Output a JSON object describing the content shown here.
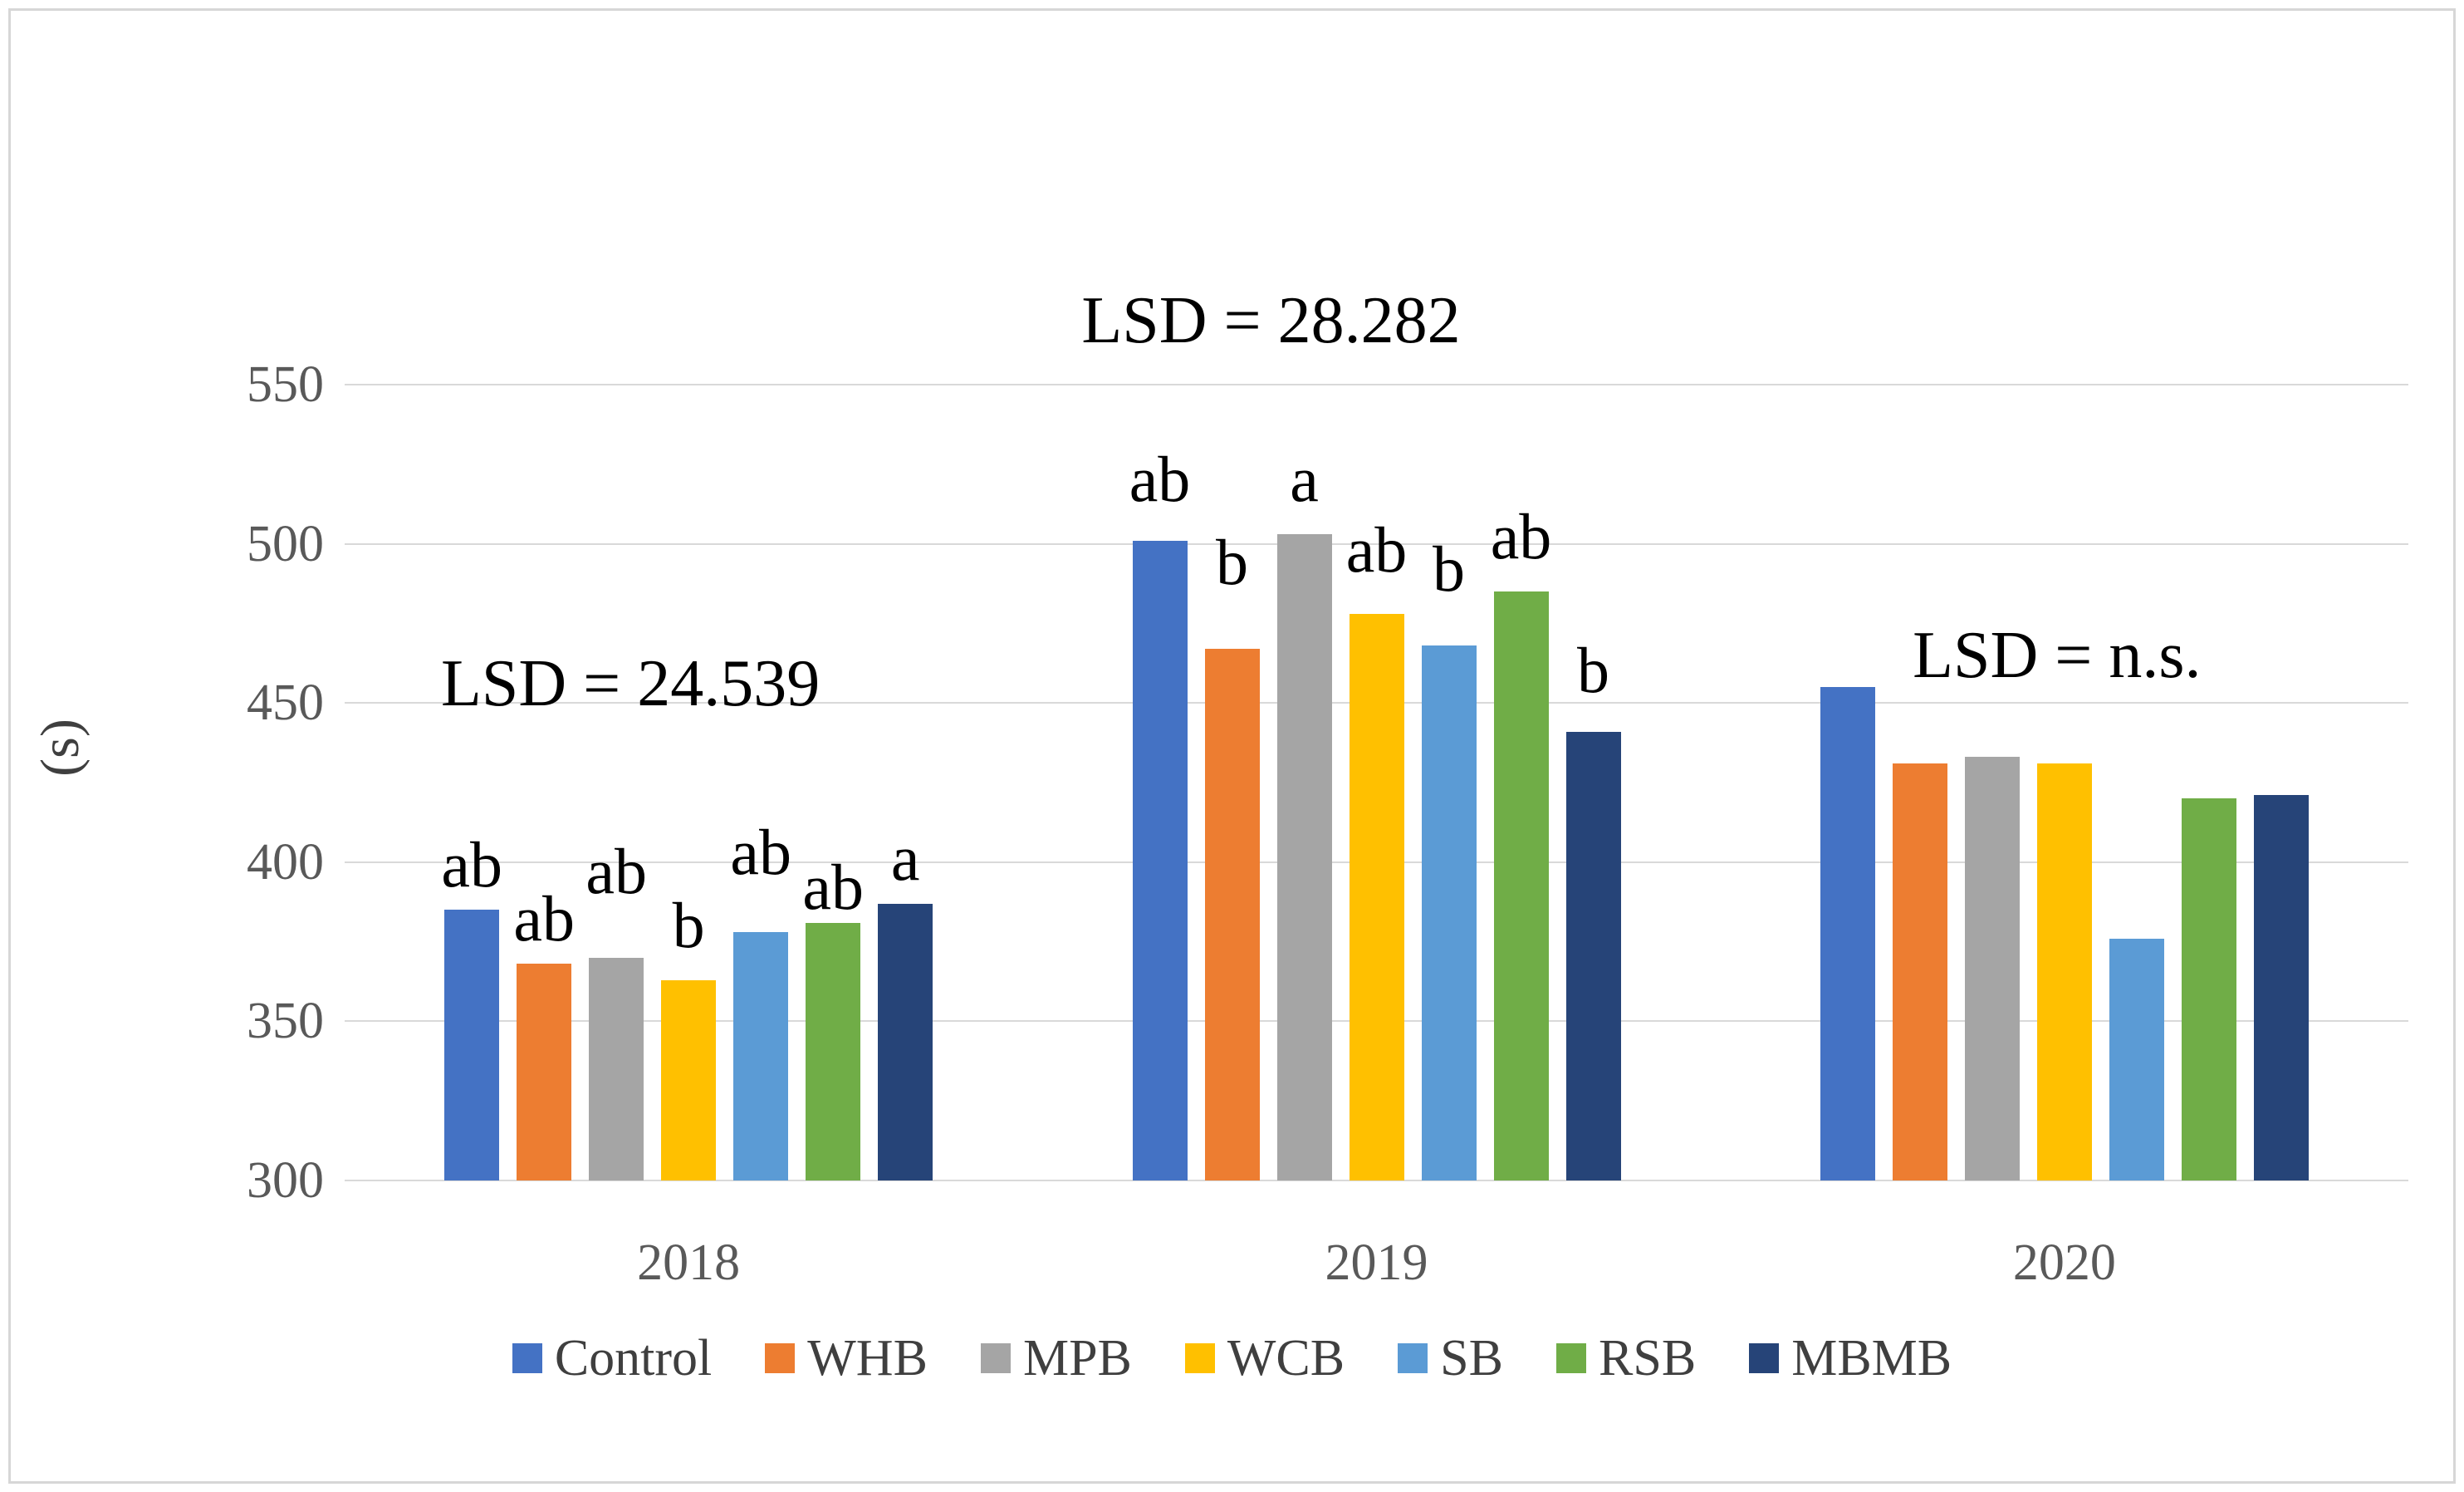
{
  "chart_data": {
    "type": "bar",
    "title": "",
    "xlabel": "",
    "ylabel": "(s)",
    "ylim": [
      300,
      550
    ],
    "yticks": [
      300,
      350,
      400,
      450,
      500,
      550
    ],
    "grid": true,
    "legend_position": "bottom",
    "categories": [
      "2018",
      "2019",
      "2020"
    ],
    "series": [
      {
        "name": "Control",
        "color": "#4472C4",
        "values": [
          385,
          501,
          455
        ]
      },
      {
        "name": "WHB",
        "color": "#ED7D31",
        "values": [
          368,
          467,
          431
        ]
      },
      {
        "name": "MPB",
        "color": "#A5A5A5",
        "values": [
          370,
          503,
          433
        ]
      },
      {
        "name": "WCB",
        "color": "#FFC000",
        "values": [
          363,
          478,
          431
        ]
      },
      {
        "name": "SB",
        "color": "#5B9BD5",
        "values": [
          378,
          468,
          376
        ]
      },
      {
        "name": "RSB",
        "color": "#70AD47",
        "values": [
          381,
          485,
          420
        ]
      },
      {
        "name": "MBMB",
        "color": "#264478",
        "values": [
          387,
          441,
          421
        ]
      }
    ],
    "significance_letters": [
      [
        "ab",
        "ab",
        "ab",
        "b",
        "ab",
        "ab",
        "a"
      ],
      [
        "ab",
        "b",
        "a",
        "ab",
        "b",
        "ab",
        "b"
      ],
      [
        "",
        "",
        "",
        "",
        "",
        "",
        ""
      ]
    ],
    "letter_offsets": [
      [
        4,
        4,
        17,
        7,
        15,
        1,
        4
      ],
      [
        9,
        17,
        7,
        10,
        14,
        7,
        9
      ],
      [
        0,
        0,
        0,
        0,
        0,
        0,
        0
      ]
    ],
    "lsd_annotations": [
      {
        "text": "LSD = 24.539",
        "category_index": 0,
        "value": 456,
        "dx": -70
      },
      {
        "text": "LSD = 28.282",
        "category_index": 1,
        "value": 570,
        "dx": -127
      },
      {
        "text": "LSD = n.s.",
        "category_index": 2,
        "value": 465,
        "dx": -9
      }
    ]
  }
}
